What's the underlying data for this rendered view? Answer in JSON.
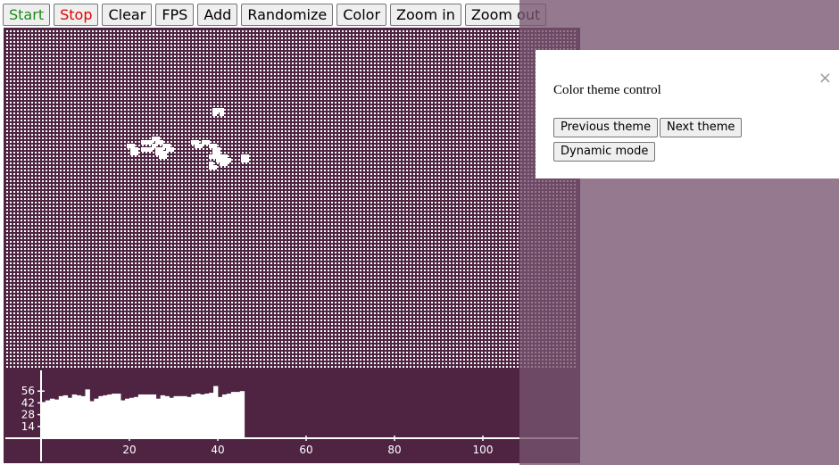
{
  "toolbar": {
    "buttons": [
      {
        "label": "Start",
        "color": "#1a8c1a"
      },
      {
        "label": "Stop",
        "color": "#e00000"
      },
      {
        "label": "Clear",
        "color": "#000000"
      },
      {
        "label": "FPS",
        "color": "#000000"
      },
      {
        "label": "Add",
        "color": "#000000"
      },
      {
        "label": "Randomize",
        "color": "#000000"
      },
      {
        "label": "Color",
        "color": "#000000"
      },
      {
        "label": "Zoom in",
        "color": "#000000"
      },
      {
        "label": "Zoom out",
        "color": "#000000"
      }
    ]
  },
  "board": {
    "cell_color": "#ffffff",
    "background_color": "#4e2442",
    "live_cells": [
      [
        58,
        22
      ],
      [
        59,
        22
      ],
      [
        60,
        22
      ],
      [
        58,
        23
      ],
      [
        60,
        23
      ],
      [
        41,
        30
      ],
      [
        42,
        30
      ],
      [
        42,
        31
      ],
      [
        43,
        31
      ],
      [
        41,
        32
      ],
      [
        44,
        32
      ],
      [
        42,
        33
      ],
      [
        43,
        33
      ],
      [
        38,
        31
      ],
      [
        39,
        31
      ],
      [
        40,
        31
      ],
      [
        38,
        33
      ],
      [
        39,
        33
      ],
      [
        40,
        33
      ],
      [
        34,
        32
      ],
      [
        35,
        32
      ],
      [
        35,
        33
      ],
      [
        36,
        33
      ],
      [
        35,
        34
      ],
      [
        36,
        34
      ],
      [
        42,
        34
      ],
      [
        43,
        34
      ],
      [
        44,
        34
      ],
      [
        43,
        35
      ],
      [
        44,
        35
      ],
      [
        45,
        32
      ],
      [
        45,
        33
      ],
      [
        46,
        33
      ],
      [
        52,
        31
      ],
      [
        53,
        31
      ],
      [
        53,
        32
      ],
      [
        54,
        32
      ],
      [
        55,
        31
      ],
      [
        56,
        31
      ],
      [
        57,
        32
      ],
      [
        58,
        32
      ],
      [
        58,
        33
      ],
      [
        59,
        33
      ],
      [
        58,
        34
      ],
      [
        59,
        34
      ],
      [
        57,
        35
      ],
      [
        58,
        35
      ],
      [
        59,
        35
      ],
      [
        60,
        35
      ],
      [
        61,
        35
      ],
      [
        59,
        36
      ],
      [
        60,
        36
      ],
      [
        61,
        36
      ],
      [
        62,
        36
      ],
      [
        60,
        37
      ],
      [
        61,
        37
      ],
      [
        57,
        37
      ],
      [
        57,
        38
      ],
      [
        58,
        38
      ],
      [
        66,
        35
      ],
      [
        67,
        35
      ],
      [
        66,
        36
      ],
      [
        67,
        36
      ]
    ]
  },
  "population_chart": {
    "type": "bar",
    "y_ticks": [
      14,
      28,
      42,
      56
    ],
    "x_ticks": [
      20,
      40,
      60,
      80,
      100
    ],
    "xlim": [
      0,
      120
    ],
    "ylim": [
      0,
      70
    ],
    "values": [
      43,
      45,
      47,
      46,
      50,
      51,
      48,
      52,
      51,
      50,
      58,
      44,
      47,
      50,
      51,
      52,
      53,
      53,
      45,
      47,
      48,
      49,
      52,
      52,
      52,
      52,
      47,
      51,
      50,
      48,
      50,
      50,
      50,
      49,
      52,
      53,
      52,
      53,
      54,
      62,
      49,
      52,
      53,
      55,
      55,
      56
    ]
  },
  "dialog": {
    "title": "Color theme control",
    "close_symbol": "×",
    "buttons": {
      "previous": "Previous theme",
      "next": "Next theme",
      "dynamic": "Dynamic mode"
    }
  }
}
